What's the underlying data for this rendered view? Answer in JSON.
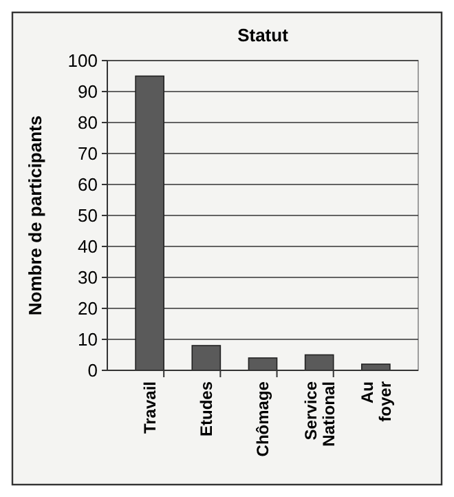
{
  "chart_data": {
    "type": "bar",
    "title": "Statut",
    "ylabel": "Nombre de participants",
    "categories": [
      "Travail",
      "Etudes",
      "Chômage",
      "Service National",
      "Au foyer"
    ],
    "values": [
      95,
      8,
      4,
      5,
      2
    ],
    "color": "#5a5a5a",
    "ylim": [
      0,
      100
    ],
    "yticks": [
      0,
      10,
      20,
      30,
      40,
      50,
      60,
      70,
      80,
      90,
      100
    ],
    "grid": "y"
  }
}
